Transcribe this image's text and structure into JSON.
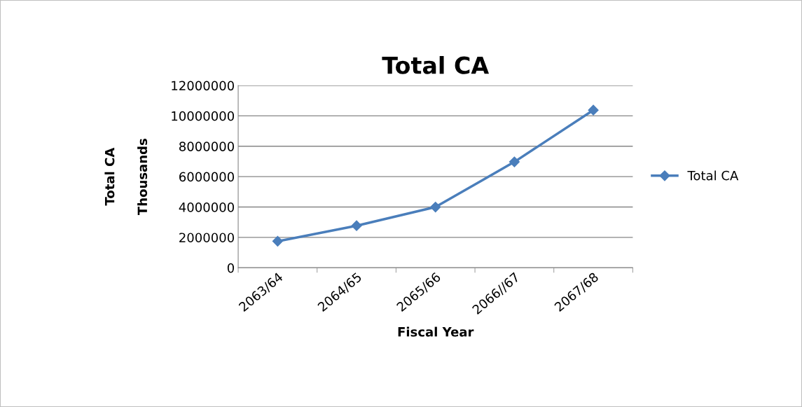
{
  "chart_data": {
    "type": "line",
    "title": "Total CA",
    "xlabel": "Fiscal Year",
    "ylabel": "Total CA",
    "annotations": [
      "Thousands"
    ],
    "categories": [
      "2063/64",
      "2064/65",
      "2065/66",
      "2066//67",
      "2067/68"
    ],
    "series": [
      {
        "name": "Total CA",
        "color": "#4a7ebb",
        "values": [
          1750000,
          2770000,
          4000000,
          6970000,
          10380000
        ]
      }
    ],
    "ylim": [
      0,
      12000000
    ],
    "yticks": [
      0,
      2000000,
      4000000,
      6000000,
      8000000,
      10000000,
      12000000
    ],
    "grid": "y",
    "legend": "right",
    "marker": "diamond",
    "line_style": "solid"
  }
}
